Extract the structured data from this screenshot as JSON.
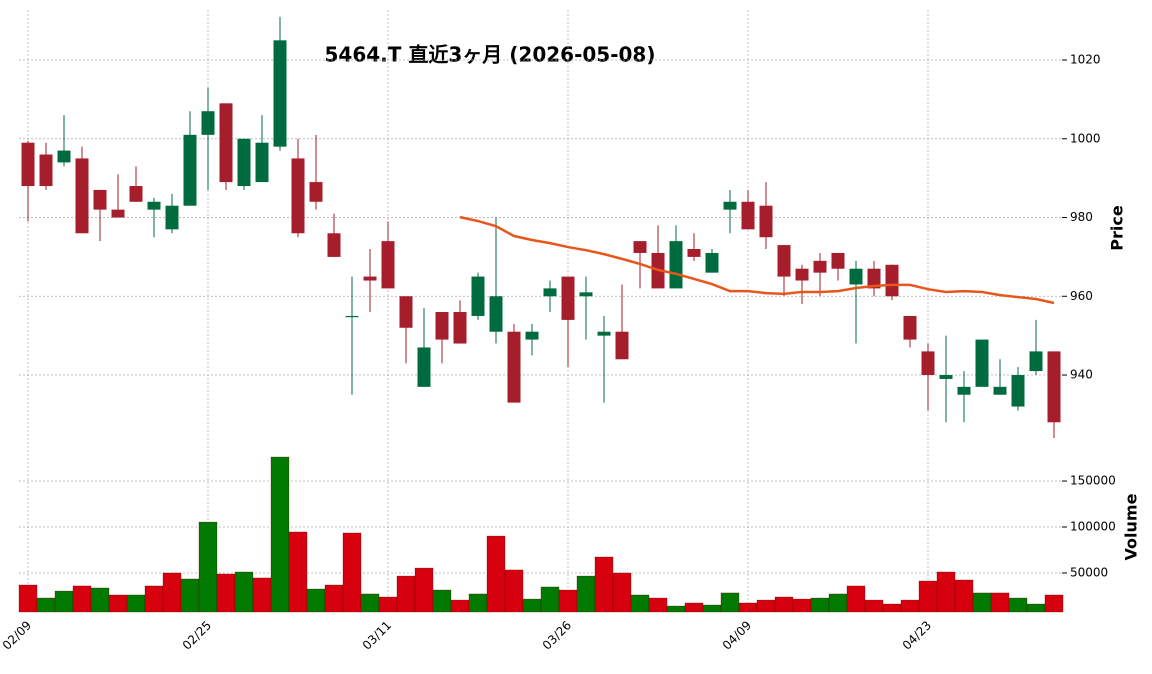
{
  "chart_data": {
    "type": "candlestick",
    "title": "5464.T 直近3ヶ月 (2026-05-08)",
    "ylabel": "Price",
    "categories": [
      "02/09",
      null,
      null,
      null,
      null,
      null,
      null,
      null,
      null,
      null,
      "02/25",
      null,
      null,
      null,
      null,
      null,
      null,
      null,
      null,
      null,
      "03/11",
      null,
      null,
      null,
      null,
      null,
      null,
      null,
      null,
      null,
      "03/26",
      null,
      null,
      null,
      null,
      null,
      null,
      null,
      null,
      null,
      "04/09",
      null,
      null,
      null,
      null,
      null,
      null,
      null,
      null,
      null,
      "04/23",
      null,
      null,
      null,
      null,
      null,
      null,
      null
    ],
    "open": [
      999,
      996,
      994,
      995,
      987,
      982,
      988,
      982,
      977,
      983,
      1001,
      1009,
      988,
      989,
      998,
      995,
      989,
      976,
      955,
      965,
      974,
      960,
      937,
      956,
      956,
      955,
      951,
      951,
      949,
      960,
      965,
      960,
      950,
      951,
      974,
      971,
      962,
      972,
      966,
      982,
      984,
      983,
      973,
      967,
      969,
      971,
      963,
      967,
      968,
      955,
      946,
      939,
      935,
      937,
      935,
      932,
      941,
      946
    ],
    "high": [
      999.5,
      999,
      1006,
      998,
      987,
      991,
      993,
      985,
      986,
      1007,
      1013,
      1009,
      1000,
      1006,
      1031,
      1000,
      1001,
      981,
      965,
      972,
      979,
      960,
      957,
      956,
      959,
      966,
      980,
      953,
      953,
      964,
      965,
      965,
      955,
      963,
      974,
      978,
      978,
      976,
      972,
      987,
      987,
      989,
      973,
      968,
      971,
      971,
      969,
      969,
      968,
      955,
      948,
      950,
      941,
      949,
      944,
      942,
      954,
      946
    ],
    "low": [
      979,
      987,
      993,
      976,
      974,
      980,
      984,
      975,
      976,
      983,
      987,
      987,
      987,
      989,
      997,
      975,
      982,
      970,
      935,
      956,
      962,
      943,
      937,
      943,
      948,
      954,
      948,
      933,
      945,
      956,
      942,
      949,
      933,
      944,
      962,
      962,
      962,
      969,
      966,
      976,
      977,
      972,
      960,
      958,
      960,
      964,
      948,
      960,
      959,
      947,
      931,
      928,
      928,
      937,
      935,
      931,
      940,
      924
    ],
    "close": [
      988,
      988,
      997,
      976,
      982,
      980,
      984,
      984,
      983,
      1001,
      1007,
      989,
      1000,
      999,
      1025,
      976,
      984,
      970,
      955,
      964,
      962,
      952,
      947,
      949,
      948,
      965,
      960,
      933,
      951,
      962,
      954,
      961,
      951,
      944,
      971,
      962,
      974,
      970,
      971,
      984,
      977,
      975,
      965,
      964,
      966,
      967,
      967,
      962,
      960,
      949,
      940,
      940,
      937,
      949,
      937,
      940,
      946,
      928
    ],
    "up_color": "#006b3f",
    "down_color": "#a61d2b",
    "ylim": [
      923.5,
      1032.7
    ],
    "yticks": [
      940,
      960,
      980,
      1000,
      1020
    ],
    "grid": true,
    "ma": {
      "color": "#e8561c",
      "values": [
        null,
        null,
        null,
        null,
        null,
        null,
        null,
        null,
        null,
        null,
        null,
        null,
        null,
        null,
        null,
        null,
        null,
        null,
        null,
        null,
        null,
        null,
        null,
        null,
        980.1,
        979.1,
        977.8,
        975.3,
        974.3,
        973.5,
        972.5,
        971.7,
        970.7,
        969.5,
        968.2,
        966.7,
        965.7,
        964.4,
        963.1,
        961.3,
        961.3,
        960.8,
        960.6,
        961.1,
        961.1,
        961.3,
        962.1,
        962.6,
        962.9,
        962.9,
        961.8,
        961.1,
        961.3,
        961.1,
        960.3,
        959.8,
        959.3,
        958.3
      ]
    },
    "volume": {
      "label": "Volume",
      "values": [
        36950,
        22800,
        30400,
        35900,
        33700,
        26100,
        26100,
        35900,
        50000,
        43500,
        105400,
        48900,
        51100,
        44600,
        176100,
        94600,
        32600,
        36950,
        93500,
        27200,
        23900,
        46700,
        55400,
        31500,
        20600,
        27200,
        90200,
        53300,
        21700,
        34800,
        31500,
        46700,
        67400,
        50000,
        26100,
        22800,
        14100,
        17400,
        15200,
        28300,
        17400,
        20600,
        23900,
        21700,
        22800,
        27200,
        35900,
        20600,
        16300,
        20600,
        41300,
        51100,
        42400,
        28300,
        28300,
        22800,
        16300,
        26100
      ],
      "colors": [
        "#d7000f",
        "#007a00",
        "#007a00",
        "#d7000f",
        "#007a00",
        "#d7000f",
        "#007a00",
        "#d7000f",
        "#d7000f",
        "#007a00",
        "#007a00",
        "#d7000f",
        "#007a00",
        "#d7000f",
        "#007a00",
        "#d7000f",
        "#007a00",
        "#d7000f",
        "#d7000f",
        "#007a00",
        "#d7000f",
        "#d7000f",
        "#d7000f",
        "#007a00",
        "#d7000f",
        "#007a00",
        "#d7000f",
        "#d7000f",
        "#007a00",
        "#007a00",
        "#d7000f",
        "#007a00",
        "#d7000f",
        "#d7000f",
        "#007a00",
        "#d7000f",
        "#007a00",
        "#d7000f",
        "#007a00",
        "#007a00",
        "#d7000f",
        "#d7000f",
        "#d7000f",
        "#d7000f",
        "#007a00",
        "#007a00",
        "#d7000f",
        "#d7000f",
        "#d7000f",
        "#d7000f",
        "#d7000f",
        "#d7000f",
        "#d7000f",
        "#007a00",
        "#d7000f",
        "#007a00",
        "#007a00",
        "#d7000f"
      ],
      "ylim": [
        7600,
        187000
      ],
      "yticks": [
        50000,
        100000,
        150000
      ]
    }
  }
}
